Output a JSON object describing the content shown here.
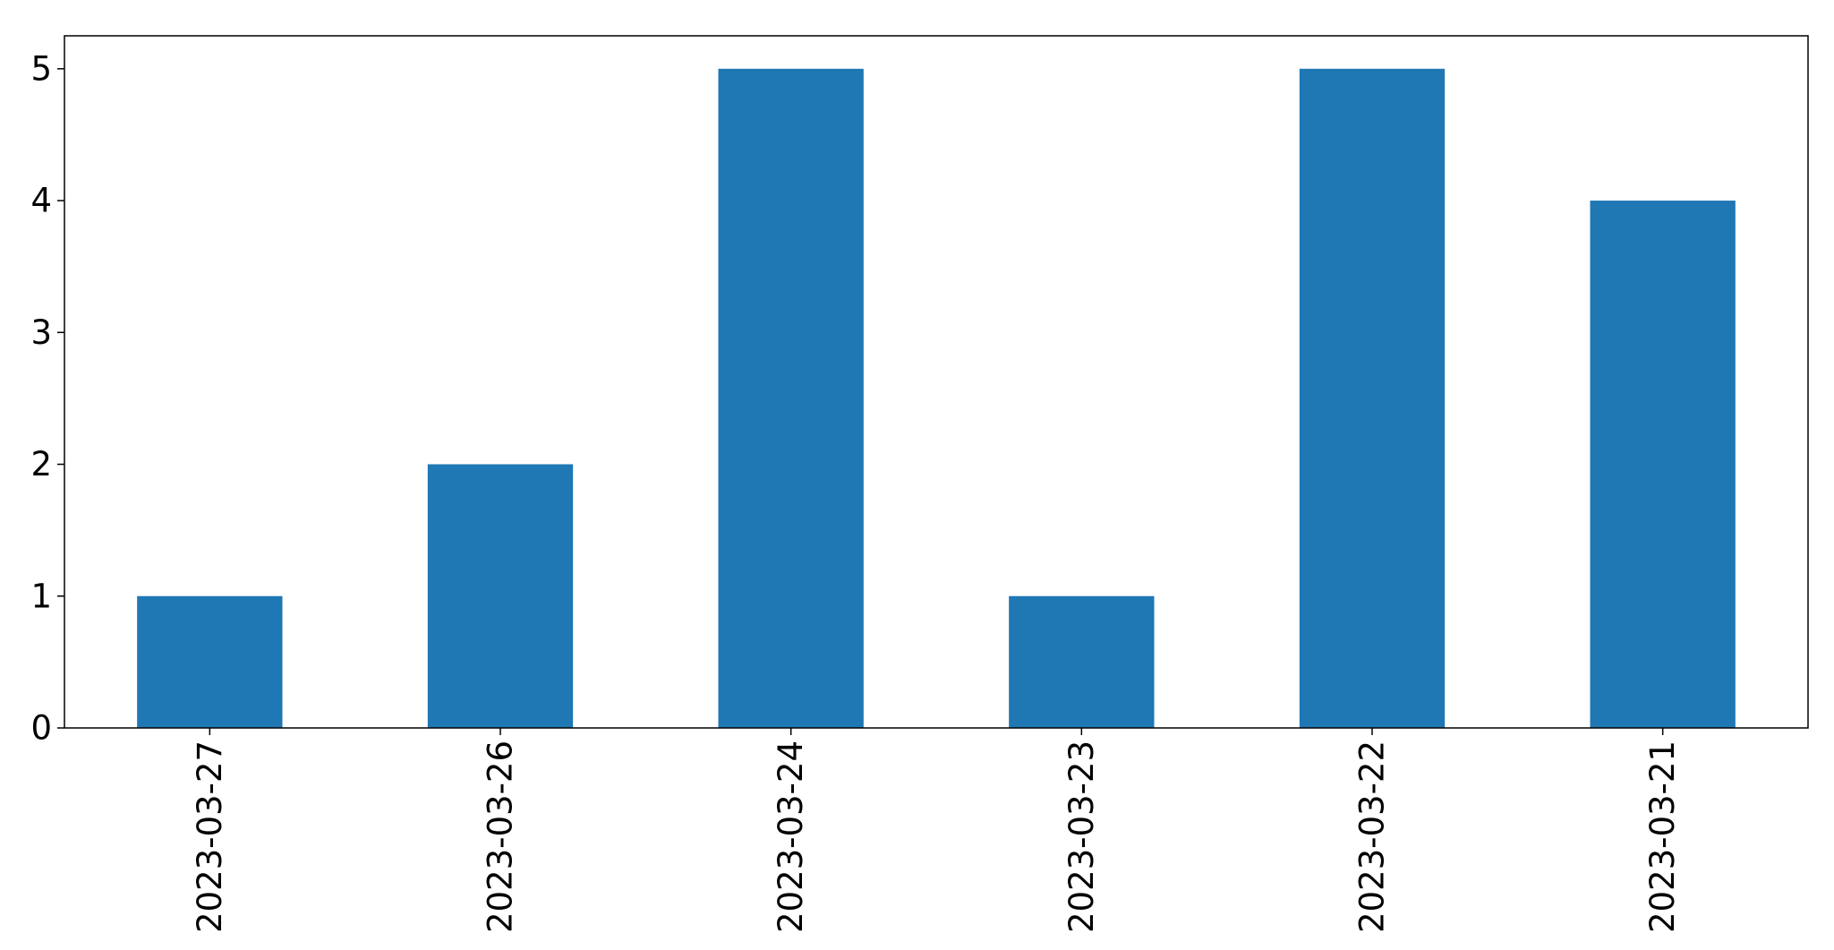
{
  "chart_data": {
    "type": "bar",
    "title": "",
    "xlabel": "",
    "ylabel": "",
    "categories": [
      "2023-03-27",
      "2023-03-26",
      "2023-03-24",
      "2023-03-23",
      "2023-03-22",
      "2023-03-21"
    ],
    "values": [
      1,
      2,
      5,
      1,
      5,
      4
    ],
    "ylim": [
      0,
      5.25
    ],
    "yticks": [
      0,
      1,
      2,
      3,
      4,
      5
    ],
    "grid": false,
    "legend": "none",
    "x_tick_rotation": "vertical",
    "bar_color": "#1f77b4",
    "axis_color": "#000000",
    "background": "#ffffff"
  }
}
